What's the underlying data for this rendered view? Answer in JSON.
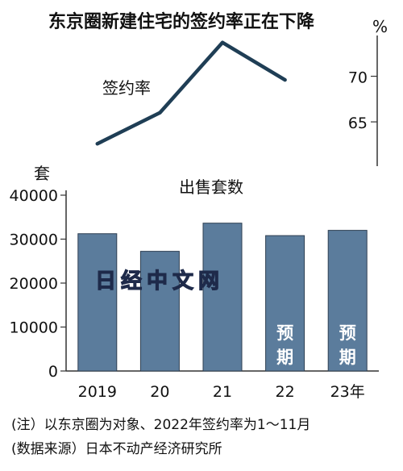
{
  "title": "东京圈新建住宅的签约率正在下降",
  "line_label": "签约率",
  "rate_unit": "%",
  "count_unit": "套",
  "bar_label": "出售套数",
  "watermark": "日经中文网",
  "notes": [
    "(注）以东京圈为对象、2022年签约率为1～11月",
    "(数据来源）日本不动产经济研究所"
  ],
  "colors": {
    "bar": "#5b7c9c",
    "bar_border": "#2f3f52",
    "line": "#1f3e55",
    "axis": "#333333"
  },
  "chart_data": [
    {
      "type": "line",
      "series": [
        {
          "name": "签约率",
          "x": [
            "2019",
            "20",
            "21",
            "22"
          ],
          "values": [
            62.6,
            66.0,
            73.7,
            69.6
          ]
        }
      ],
      "y_ticks": [
        65,
        70
      ],
      "ylim": [
        60.5,
        75
      ],
      "yaxis_side": "right",
      "grid": false
    },
    {
      "type": "bar",
      "categories": [
        "2019",
        "20",
        "21",
        "22",
        "23年"
      ],
      "values": [
        31238,
        27228,
        33636,
        30800,
        32000
      ],
      "bar_annotations": [
        "",
        "",
        "",
        "预期",
        "预期"
      ],
      "y_ticks": [
        0,
        10000,
        20000,
        30000,
        40000
      ],
      "ylim": [
        0,
        40000
      ],
      "grid": false
    }
  ]
}
